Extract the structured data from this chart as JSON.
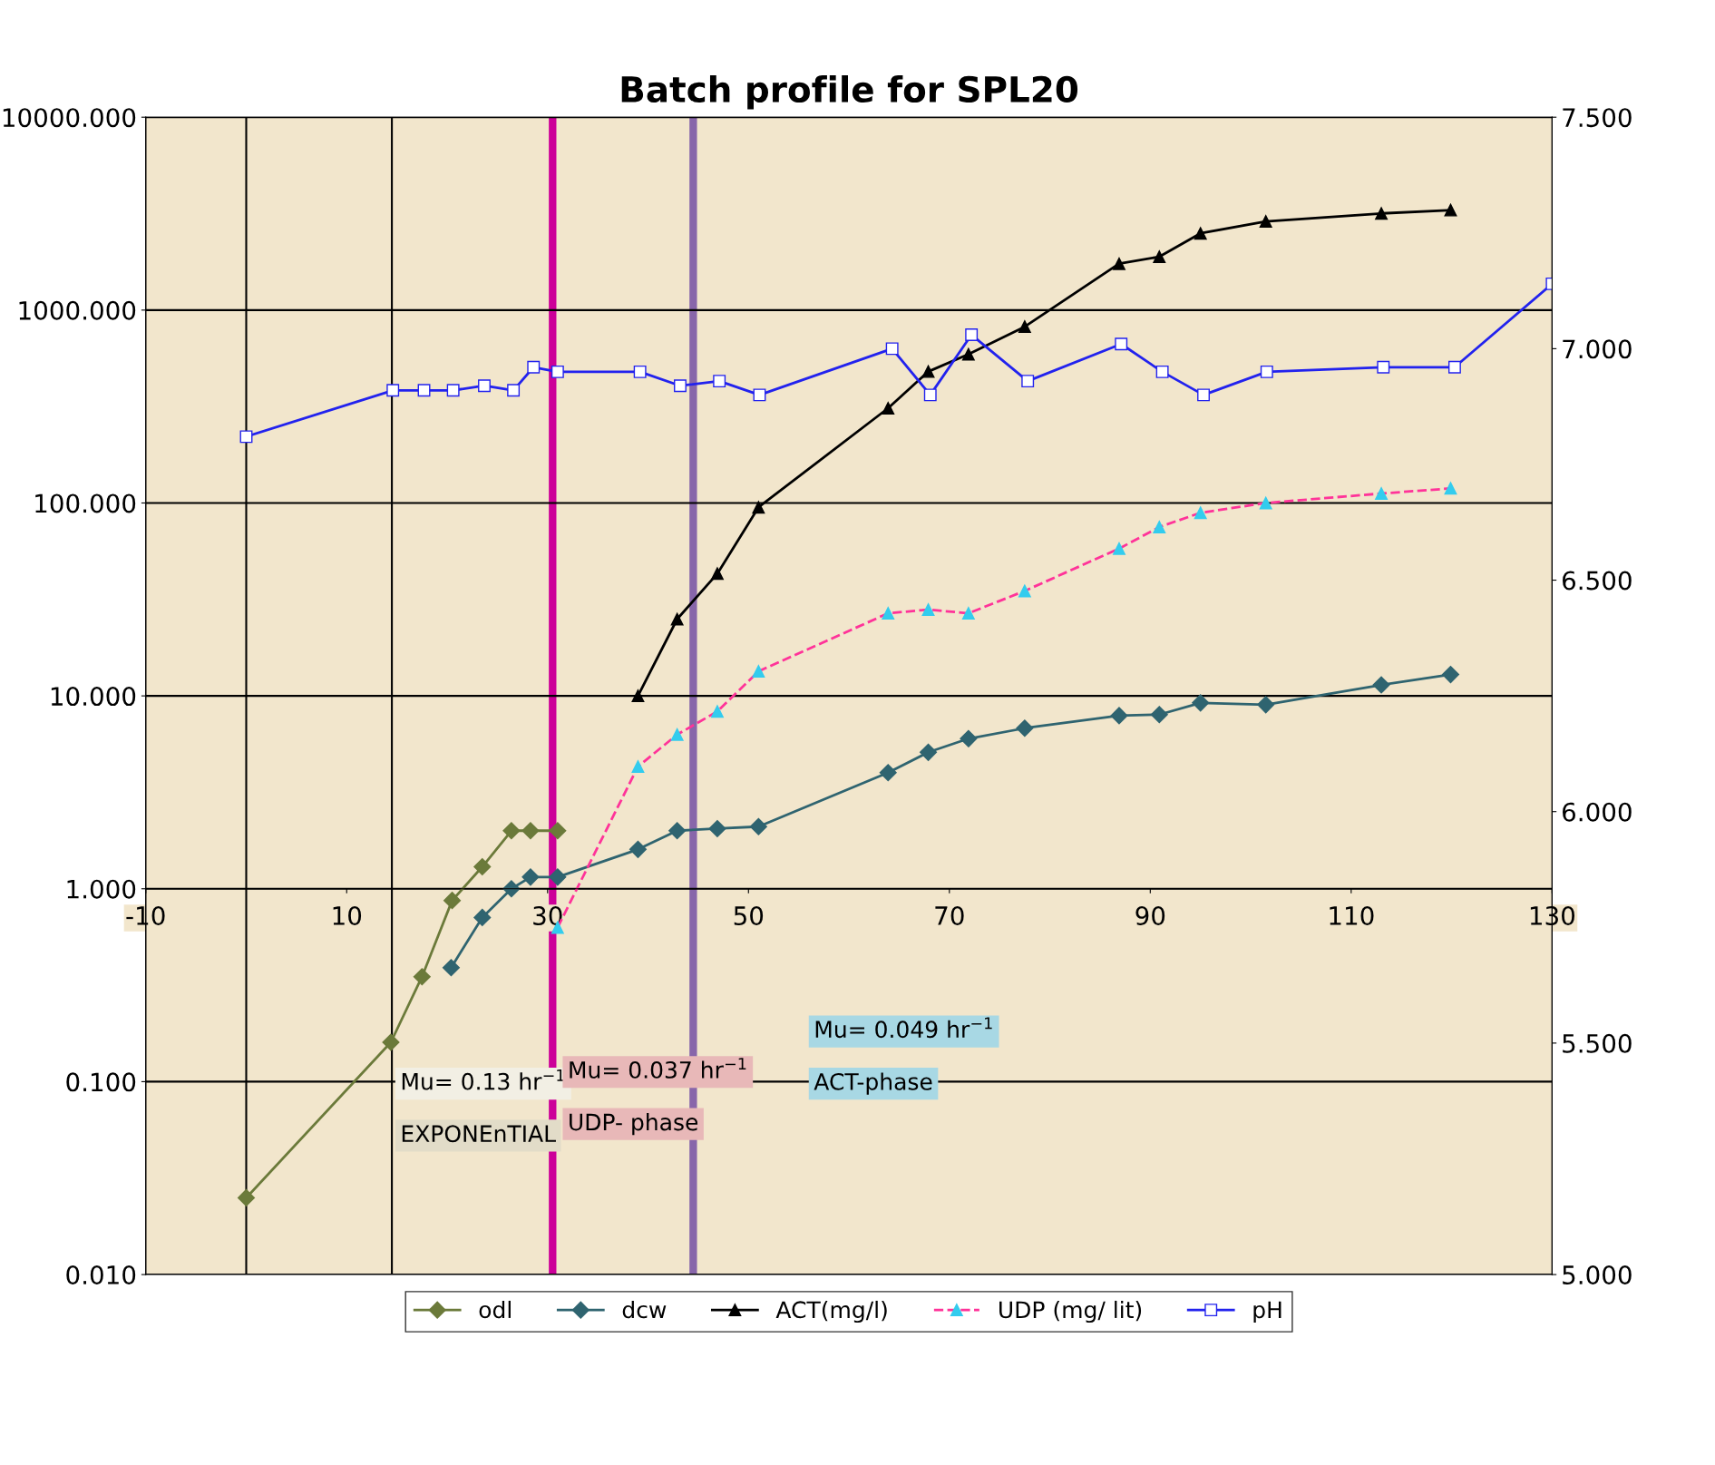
{
  "chart_data": {
    "type": "line",
    "title": "Batch profile for SPL20",
    "xlim": [
      -10,
      130
    ],
    "xticks": [
      -10,
      10,
      30,
      50,
      70,
      90,
      110,
      130
    ],
    "log": "y",
    "ylim": [
      0.01,
      10000
    ],
    "yticks": [
      {
        "value": 0.01,
        "label": "0.010"
      },
      {
        "value": 0.1,
        "label": "0.100"
      },
      {
        "value": 1,
        "label": "1.000"
      },
      {
        "value": 10,
        "label": "10.000"
      },
      {
        "value": 100,
        "label": "100.000"
      },
      {
        "value": 1000,
        "label": "1000.000"
      },
      {
        "value": 10000,
        "label": "10000.000"
      }
    ],
    "y2lim": [
      5.0,
      7.5
    ],
    "y2ticks": [
      {
        "value": 5.0,
        "label": "5.000"
      },
      {
        "value": 5.5,
        "label": "5.500"
      },
      {
        "value": 6.0,
        "label": "6.000"
      },
      {
        "value": 6.5,
        "label": "6.500"
      },
      {
        "value": 7.0,
        "label": "7.000"
      },
      {
        "value": 7.5,
        "label": "7.500"
      }
    ],
    "grid": "y",
    "legend": "bottom",
    "series": [
      {
        "name": "odl",
        "color": "#6b7a3a",
        "marker": "diamond",
        "line_style": "solid",
        "x": [
          0,
          14.4,
          17.5,
          20.5,
          23.5,
          26.4,
          28.3,
          31
        ],
        "values": [
          0.025,
          0.16,
          0.35,
          0.87,
          1.3,
          2.0,
          2.0,
          2.0
        ]
      },
      {
        "name": "dcw",
        "color": "#2f6470",
        "marker": "diamond",
        "line_style": "solid",
        "x": [
          20.4,
          23.5,
          26.4,
          28.3,
          31,
          39,
          42.9,
          46.9,
          51,
          63.9,
          67.9,
          71.9,
          77.5,
          86.9,
          90.9,
          95,
          101.5,
          113,
          119.9
        ],
        "values": [
          0.39,
          0.71,
          1.0,
          1.15,
          1.15,
          1.6,
          2.0,
          2.05,
          2.1,
          4.0,
          5.1,
          6.0,
          6.8,
          7.9,
          8.0,
          9.2,
          9.0,
          11.4,
          12.9
        ]
      },
      {
        "name": "ACT(mg/l)",
        "color": "#000000",
        "marker": "triangle",
        "line_style": "solid",
        "x": [
          39,
          42.9,
          46.9,
          51,
          63.9,
          67.9,
          71.9,
          77.5,
          86.9,
          90.9,
          95,
          101.5,
          113,
          119.9
        ],
        "values": [
          10,
          25,
          43,
          95,
          310,
          480,
          590,
          820,
          1740,
          1890,
          2500,
          2880,
          3170,
          3300
        ]
      },
      {
        "name": "UDP (mg/ lit)",
        "color": "#ff3399",
        "marker": "triangle",
        "line_style": "dashed",
        "x": [
          31,
          39,
          42.9,
          46.9,
          51,
          63.9,
          67.9,
          71.9,
          77.5,
          86.9,
          90.9,
          95,
          101.5,
          113,
          119.9
        ],
        "values": [
          0.63,
          4.3,
          6.3,
          8.3,
          13.4,
          26.8,
          28,
          26.8,
          35,
          58,
          75,
          89,
          100,
          112,
          119
        ]
      },
      {
        "name": "pH",
        "color": "#2222ee",
        "marker": "square",
        "line_style": "solid",
        "axis": "y2",
        "x": [
          0,
          14.6,
          17.7,
          20.6,
          23.7,
          26.6,
          28.6,
          31,
          39.2,
          43.2,
          47.1,
          51.1,
          64.3,
          68.1,
          72.2,
          77.8,
          87.1,
          91.2,
          95.3,
          101.6,
          113.2,
          120.3,
          130
        ],
        "values": [
          6.81,
          6.91,
          6.91,
          6.91,
          6.92,
          6.91,
          6.96,
          6.95,
          6.95,
          6.92,
          6.93,
          6.9,
          7.0,
          6.9,
          7.03,
          6.93,
          7.01,
          6.95,
          6.9,
          6.95,
          6.96,
          6.96,
          7.14
        ]
      }
    ],
    "ref_lines": [
      {
        "axis": "x",
        "value": 0,
        "color": "#000000"
      },
      {
        "axis": "x",
        "value": 14.5,
        "color": "#000000"
      },
      {
        "axis": "x",
        "value": 30.5,
        "color": "#cc0099"
      },
      {
        "axis": "x",
        "value": 44.5,
        "color": "#8866aa"
      }
    ],
    "annotations": [
      "Mu= 0.13 hr$^{−1}$",
      "EXPONEnTIAL",
      "Mu= 0.037 hr$^{−1}$",
      "UDP- phase",
      "Mu= 0.049 hr$^{−1}$",
      "ACT-phase"
    ]
  }
}
